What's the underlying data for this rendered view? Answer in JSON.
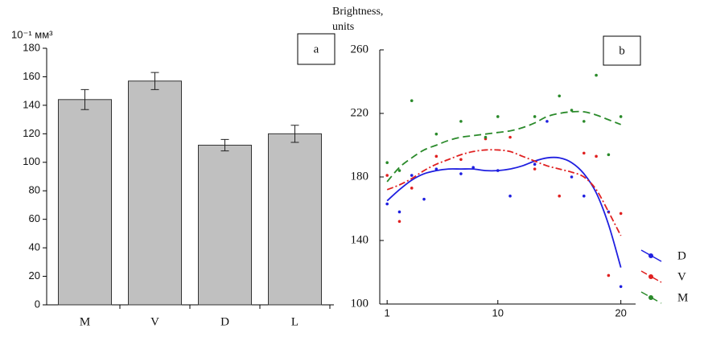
{
  "chart_data": [
    {
      "type": "bar",
      "panel_label": "a",
      "y_label": "10⁻¹ мм³",
      "categories": [
        "M",
        "V",
        "D",
        "L"
      ],
      "values": [
        144,
        157,
        112,
        120
      ],
      "errors": [
        7,
        6,
        4,
        6
      ],
      "color": "#c0c0c0",
      "ylim": [
        0,
        180
      ],
      "yticks": [
        0,
        20,
        40,
        60,
        80,
        100,
        120,
        140,
        160,
        180
      ]
    },
    {
      "type": "line",
      "panel_label": "b",
      "y_label": [
        "Brightness,",
        "units"
      ],
      "x": [
        1,
        2,
        3,
        4,
        5,
        6,
        7,
        8,
        9,
        10,
        11,
        12,
        13,
        14,
        15,
        16,
        17,
        18,
        19,
        20
      ],
      "xlim": [
        0.4,
        21.2
      ],
      "xticks": [
        1,
        10,
        20
      ],
      "ylim": [
        100,
        260
      ],
      "yticks": [
        100,
        140,
        180,
        220,
        260
      ],
      "series": [
        {
          "name": "D",
          "color": "#1f1fe0",
          "style": "solid",
          "values": [
            165,
            172,
            178,
            182,
            184,
            185,
            185,
            185,
            184,
            184,
            185,
            187,
            190,
            192,
            192,
            189,
            182,
            170,
            150,
            123
          ],
          "points": {
            "x": [
              1,
              2,
              3,
              4,
              5,
              7,
              8,
              10,
              11,
              13,
              14,
              16,
              17,
              19,
              20
            ],
            "y": [
              163,
              158,
              181,
              166,
              185,
              182,
              186,
              184,
              168,
              188,
              215,
              180,
              168,
              158,
              111
            ]
          }
        },
        {
          "name": "V",
          "color": "#e02020",
          "style": "dashdot",
          "values": [
            172,
            175,
            179,
            184,
            188,
            191,
            194,
            196,
            197,
            197,
            196,
            193,
            190,
            187,
            185,
            183,
            180,
            172,
            158,
            143
          ],
          "points": {
            "x": [
              1,
              2,
              3,
              5,
              7,
              9,
              11,
              13,
              15,
              17,
              18,
              19,
              20
            ],
            "y": [
              181,
              152,
              173,
              193,
              191,
              204,
              205,
              185,
              168,
              195,
              193,
              118,
              157
            ]
          }
        },
        {
          "name": "M",
          "color": "#2a8a2a",
          "style": "dashed",
          "values": [
            177,
            186,
            192,
            197,
            200,
            203,
            205,
            206,
            207,
            208,
            209,
            211,
            214,
            218,
            220,
            221,
            221,
            219,
            216,
            213
          ],
          "points": {
            "x": [
              1,
              2,
              3,
              5,
              7,
              9,
              10,
              13,
              15,
              16,
              17,
              18,
              19,
              20
            ],
            "y": [
              189,
              184,
              228,
              207,
              215,
              205,
              218,
              218,
              231,
              222,
              215,
              244,
              194,
              218
            ]
          }
        }
      ]
    }
  ]
}
